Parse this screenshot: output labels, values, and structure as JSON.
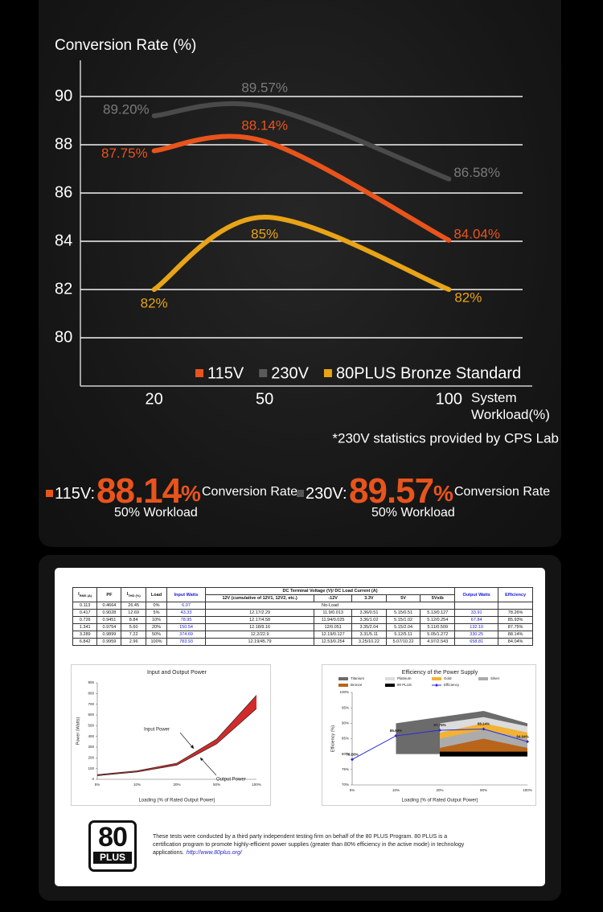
{
  "chart_data": [
    {
      "type": "line",
      "title": "Conversion Rate (%)",
      "x_label": "System Workload(%)",
      "note": "*230V statistics provided by CPS Lab",
      "x": [
        20,
        50,
        100
      ],
      "xlim": [
        0,
        120
      ],
      "xticks": [
        20,
        50,
        100
      ],
      "ylim": [
        78,
        91.5
      ],
      "yticks": [
        80,
        82,
        84,
        86,
        88,
        90
      ],
      "grid": true,
      "legend": "bottom-right",
      "series": [
        {
          "name": "115V",
          "color": "#e8541c",
          "values": [
            87.75,
            88.14,
            84.04
          ],
          "value_labels": [
            "87.75%",
            "88.14%",
            "84.04%"
          ]
        },
        {
          "name": "230V",
          "color": "#4a4a4a",
          "values": [
            89.2,
            89.57,
            86.58
          ],
          "value_labels": [
            "89.20%",
            "89.57%",
            "86.58%"
          ]
        },
        {
          "name": "80PLUS Bronze Standard",
          "color": "#e8a317",
          "values": [
            82,
            85,
            82
          ],
          "value_labels": [
            "82%",
            "85%",
            "82%"
          ]
        }
      ]
    },
    {
      "type": "line",
      "title": "Input and Output Power",
      "x_label": "Loading (% of Rated Output Power)",
      "y_label": "Power (Watts)",
      "categories": [
        "5%",
        "10%",
        "20%",
        "50%",
        "100%"
      ],
      "ylim": [
        0,
        900
      ],
      "yticks": [
        0,
        100,
        200,
        300,
        400,
        500,
        600,
        700,
        800,
        900
      ],
      "grid": false,
      "fill_between_color": "#d42a2a",
      "series": [
        {
          "name": "Input Power",
          "color": "#222222",
          "values": [
            43.33,
            78.95,
            150.54,
            374.69,
            783.93
          ]
        },
        {
          "name": "Output Power",
          "color": "#222222",
          "values": [
            33.91,
            67.84,
            132.1,
            330.25,
            658.81
          ]
        }
      ]
    },
    {
      "type": "line",
      "title": "Efficiency of the Power Supply",
      "x_label": "Loading (% of Rated Output Power)",
      "y_label": "Efficiency (%)",
      "categories": [
        "5%",
        "10%",
        "20%",
        "50%",
        "100%"
      ],
      "ylim": [
        70,
        100
      ],
      "yticks": [
        {
          "value": 70,
          "label": "70%"
        },
        {
          "value": 75,
          "label": "75%"
        },
        {
          "value": 80,
          "label": "80%"
        },
        {
          "value": 85,
          "label": "85%"
        },
        {
          "value": 90,
          "label": "90%"
        },
        {
          "value": 95,
          "label": "95%"
        },
        {
          "value": 100,
          "label": "100%"
        }
      ],
      "grid": false,
      "series": [
        {
          "name": "Titanium",
          "color": "#6b6b6b",
          "style": "band",
          "values": [
            null,
            90,
            92,
            94,
            90
          ]
        },
        {
          "name": "Platinum",
          "color": "#dcdcdc",
          "style": "band",
          "values": [
            null,
            null,
            90,
            92,
            89
          ]
        },
        {
          "name": "Gold",
          "color": "#f2b233",
          "style": "band",
          "values": [
            null,
            null,
            87,
            90,
            87
          ]
        },
        {
          "name": "Silver",
          "color": "#ababab",
          "style": "band",
          "values": [
            null,
            null,
            85,
            88,
            85
          ]
        },
        {
          "name": "Bronze",
          "color": "#b8651b",
          "style": "band",
          "values": [
            null,
            null,
            82,
            85,
            82
          ]
        },
        {
          "name": "80 PLUS",
          "color": "#000000",
          "style": "base",
          "values": [
            null,
            null,
            80,
            80,
            80
          ]
        },
        {
          "name": "Efficiency",
          "color": "#2b2bd6",
          "style": "line",
          "values": [
            78.26,
            85.93,
            87.75,
            88.14,
            84.04
          ],
          "value_labels": [
            "78.26%",
            "85.93%",
            "87.75%",
            "88.14%",
            "84.04%"
          ]
        }
      ]
    }
  ],
  "highlights": [
    {
      "label": "115V:",
      "value": "88.14",
      "unit": "%",
      "caption": "Conversion Rate",
      "workload": "50% Workload",
      "color": "#e8541c"
    },
    {
      "label": "230V:",
      "value": "89.57",
      "unit": "%",
      "caption": "Conversion Rate",
      "workload": "50% Workload",
      "color": "#555555"
    }
  ],
  "report": {
    "table": {
      "headers": [
        {
          "text": "I",
          "sub": "RMS (A)"
        },
        {
          "text": "PF"
        },
        {
          "text": "I",
          "sub": "THD (%)"
        },
        {
          "text": "Load"
        },
        {
          "text": "Input Watts"
        },
        {
          "text": "Output Watts"
        },
        {
          "text": "Efficiency"
        }
      ],
      "voltage_header": "DC Terminal Voltage (V)/ DC Load Current (A)",
      "voltage_subheaders": [
        "12V (cumulative of 12V1, 12V2, etc.)",
        "-12V",
        "3.3V",
        "5V",
        "5Vstb"
      ],
      "no_load": "No-Load",
      "rows": [
        [
          "0.113",
          "0.4664",
          "26.45",
          "0%",
          "6.07"
        ],
        [
          "0.417",
          "0.9028",
          "12.69",
          "5%",
          "43.33",
          "12.17/2.29",
          "11.9/0.013",
          "3.36/0.51",
          "5.15/0.51",
          "5.13/0.127",
          "33.91",
          "78.26%"
        ],
        [
          "0.726",
          "0.9451",
          "8.84",
          "10%",
          "78.95",
          "12.17/4.58",
          "11.94/0.025",
          "3.36/1.02",
          "5.15/1.02",
          "5.12/0.254",
          "67.84",
          "85.93%"
        ],
        [
          "1.341",
          "0.9754",
          "5.60",
          "20%",
          "150.54",
          "12.18/9.16",
          "12/0.051",
          "3.35/2.04",
          "5.15/2.04",
          "5.11/0.509",
          "132.10",
          "87.75%"
        ],
        [
          "3.289",
          "0.9899",
          "7.22",
          "50%",
          "374.69",
          "12.2/22.9",
          "12.19/0.127",
          "3.31/5.11",
          "5.12/5.11",
          "5.05/1.272",
          "330.25",
          "88.14%"
        ],
        [
          "6.842",
          "0.9959",
          "2.96",
          "100%",
          "783.93",
          "12.19/45.79",
          "12.53/0.254",
          "3.25/10.22",
          "5.07/10.22",
          "4.97/2.543",
          "658.81",
          "84.04%"
        ]
      ]
    },
    "logo": {
      "top": "80",
      "bottom": "PLUS"
    },
    "disclaimer": "These tests were conducted by a third party independent testing firm on behalf of the 80 PLUS Program. 80 PLUS is a certification program to promote highly-efficient power supplies (greater than 80% efficiency in the active mode) in technology applications.",
    "link": "http://www.80plus.org/"
  }
}
